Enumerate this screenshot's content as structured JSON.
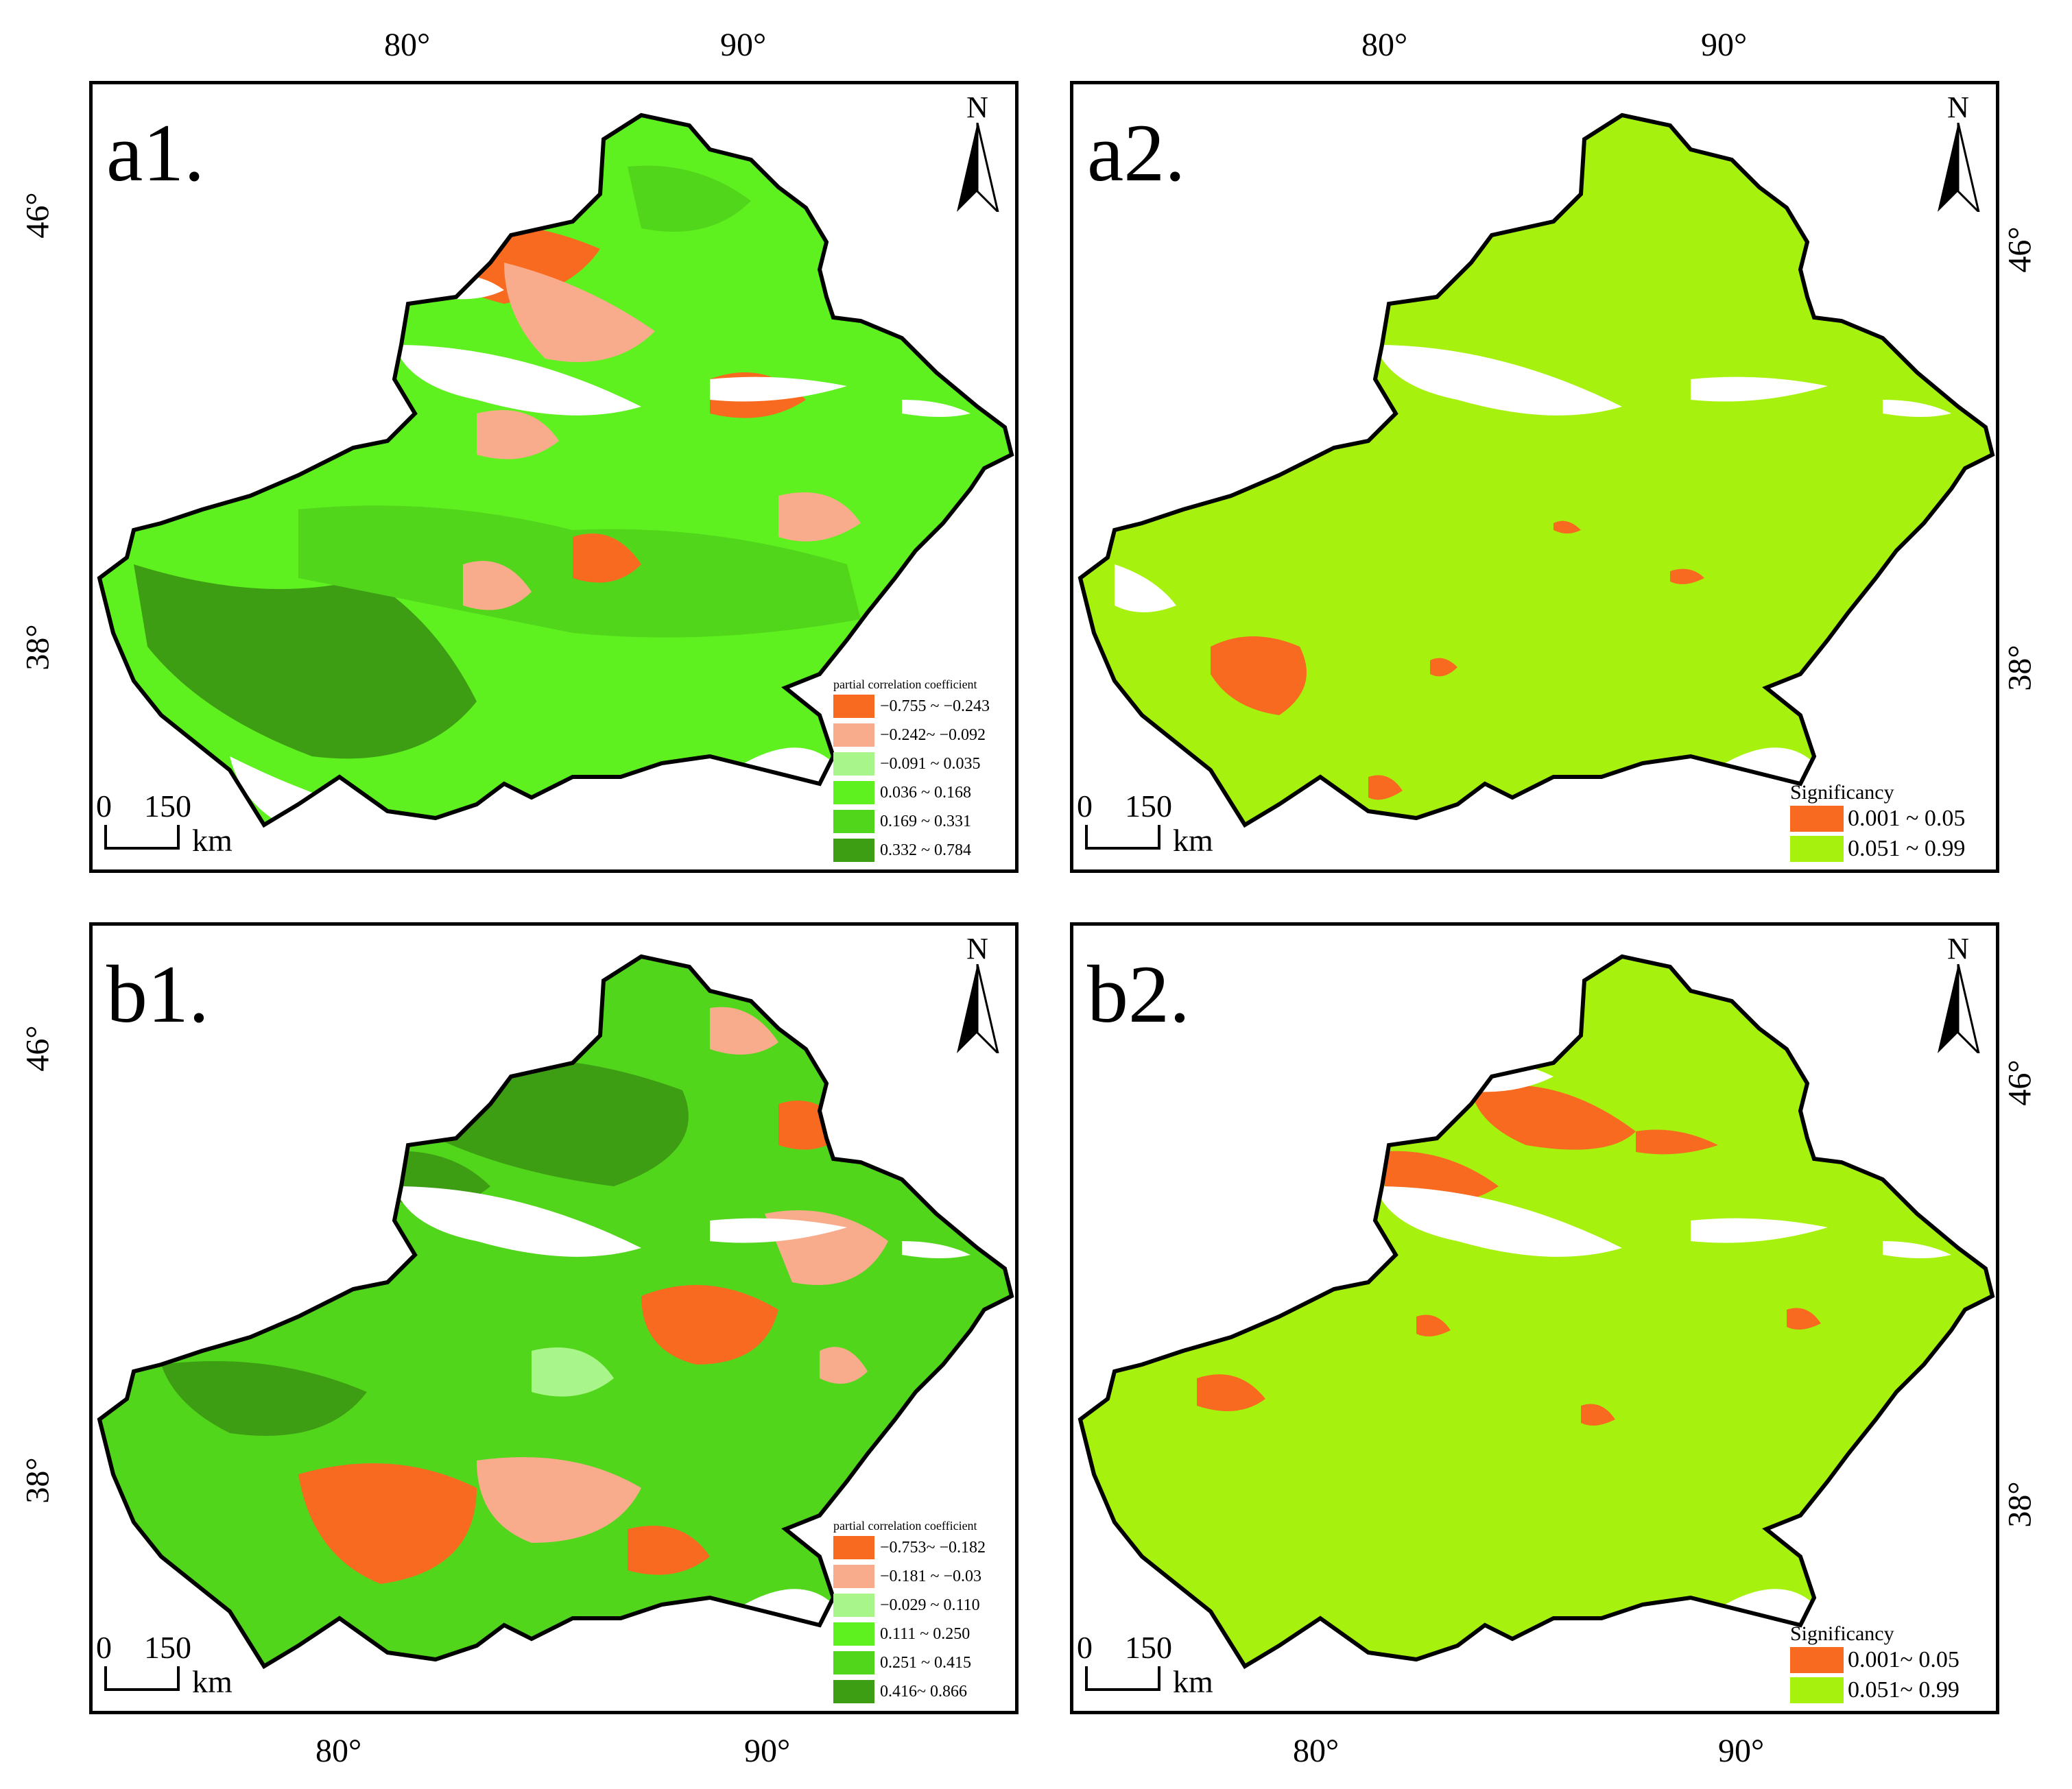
{
  "axes": {
    "top_left": [
      "80°",
      "90°"
    ],
    "top_right": [
      "80°",
      "90°"
    ],
    "bottom_left": [
      "80°",
      "90°"
    ],
    "bottom_right": [
      "80°",
      "90°"
    ],
    "left": [
      "46°",
      "38°"
    ],
    "right": [
      "46°",
      "38°"
    ]
  },
  "scalebar": {
    "start": "0",
    "end": "150",
    "unit": "km"
  },
  "north": "N",
  "colors": {
    "neg_strong": "#f86a1f",
    "neg_weak": "#f9ac8b",
    "near_zero": "#a8f58a",
    "pos_weak": "#5ef01f",
    "pos_mid": "#52d61c",
    "pos_strong": "#3d9e14",
    "sig_significant": "#f86a1f",
    "sig_not": "#a6f20e"
  },
  "panels": [
    {
      "label": "a1.",
      "legend": {
        "title": "partial correlation coefficient",
        "items": [
          {
            "label": "−0.755 ~ −0.243",
            "color": "#f86a1f"
          },
          {
            "label": "−0.242~ −0.092",
            "color": "#f9ac8b"
          },
          {
            "label": "−0.091 ~ 0.035",
            "color": "#a8f58a"
          },
          {
            "label": "0.036 ~ 0.168",
            "color": "#5ef01f"
          },
          {
            "label": "0.169 ~ 0.331",
            "color": "#52d61c"
          },
          {
            "label": "0.332 ~ 0.784",
            "color": "#3d9e14"
          }
        ]
      }
    },
    {
      "label": "a2.",
      "legend": {
        "title": "Significancy",
        "items": [
          {
            "label": "0.001 ~ 0.05",
            "color": "#f86a1f"
          },
          {
            "label": "0.051 ~ 0.99",
            "color": "#a6f20e"
          }
        ]
      }
    },
    {
      "label": "b1.",
      "legend": {
        "title": "partial correlation coefficient",
        "items": [
          {
            "label": "−0.753~ −0.182",
            "color": "#f86a1f"
          },
          {
            "label": "−0.181 ~ −0.03",
            "color": "#f9ac8b"
          },
          {
            "label": "−0.029 ~ 0.110",
            "color": "#a8f58a"
          },
          {
            "label": "0.111 ~ 0.250",
            "color": "#5ef01f"
          },
          {
            "label": "0.251 ~ 0.415",
            "color": "#52d61c"
          },
          {
            "label": "0.416~ 0.866",
            "color": "#3d9e14"
          }
        ]
      }
    },
    {
      "label": "b2.",
      "legend": {
        "title": "Significancy",
        "items": [
          {
            "label": "0.001~ 0.05",
            "color": "#f86a1f"
          },
          {
            "label": "0.051~ 0.99",
            "color": "#a6f20e"
          }
        ]
      }
    }
  ]
}
